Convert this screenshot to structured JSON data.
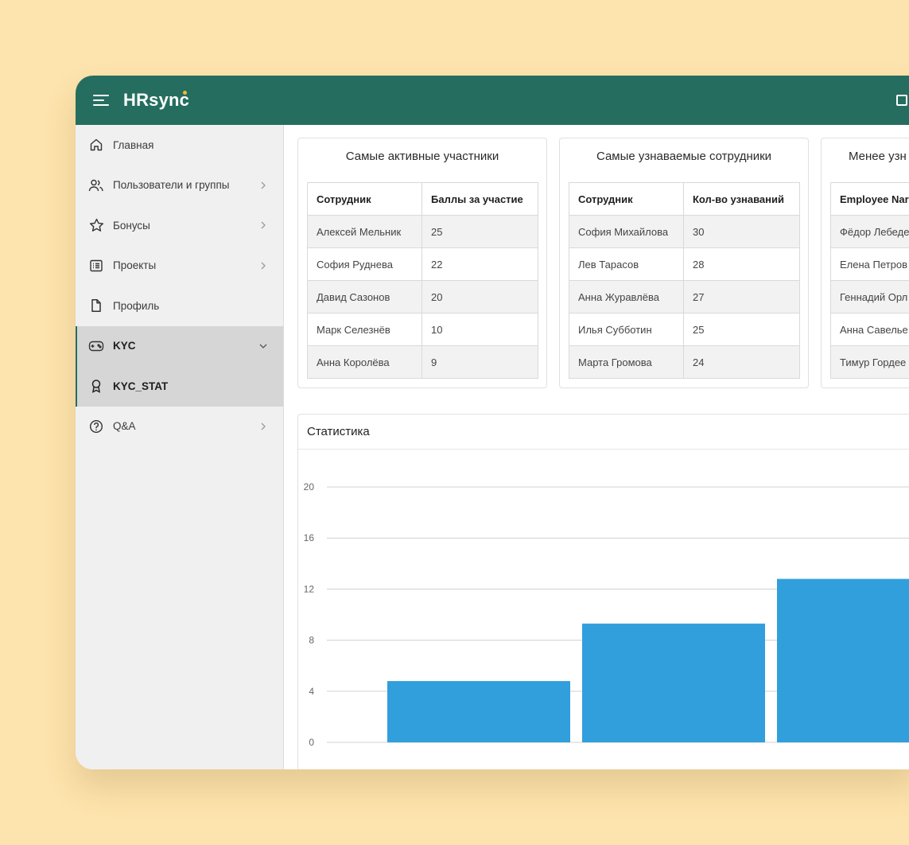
{
  "app": {
    "brand": "HRsync",
    "colors": {
      "topbar": "#256e5f",
      "background": "#fde3ad",
      "bar": "#319fdc",
      "accent_dot": "#f7b731"
    }
  },
  "sidebar": {
    "items": [
      {
        "label": "Главная",
        "icon": "home-icon",
        "chevron": false
      },
      {
        "label": "Пользователи и группы",
        "icon": "users-icon",
        "chevron": true
      },
      {
        "label": "Бонусы",
        "icon": "star-icon",
        "chevron": true
      },
      {
        "label": "Проекты",
        "icon": "list-icon",
        "chevron": true
      },
      {
        "label": "Профиль",
        "icon": "file-icon",
        "chevron": false
      },
      {
        "label": "KYC",
        "icon": "gamepad-icon",
        "chevron": true,
        "expanded": true
      },
      {
        "label": "KYC_STAT",
        "icon": "award-icon",
        "chevron": false,
        "selected": true
      },
      {
        "label": "Q&A",
        "icon": "help-icon",
        "chevron": true
      }
    ]
  },
  "cards": [
    {
      "title": "Самые активные участники",
      "columns": [
        "Сотрудник",
        "Баллы за участие"
      ],
      "rows": [
        [
          "Алексей Мельник",
          "25"
        ],
        [
          "София Руднева",
          "22"
        ],
        [
          "Давид Сазонов",
          "20"
        ],
        [
          "Марк Селезнёв",
          "10"
        ],
        [
          "Анна Королёва",
          "9"
        ]
      ]
    },
    {
      "title": "Самые узнаваемые сотрудники",
      "columns": [
        "Сотрудник",
        "Кол-во узнаваний"
      ],
      "rows": [
        [
          "София Михайлова",
          "30"
        ],
        [
          "Лев Тарасов",
          "28"
        ],
        [
          "Анна  Журавлёва",
          "27"
        ],
        [
          "Илья Субботин",
          "25"
        ],
        [
          "Марта Громова",
          "24"
        ]
      ]
    },
    {
      "title": "Менее узн",
      "columns": [
        "Employee Nar",
        ""
      ],
      "rows": [
        [
          "Фёдор Лебеде",
          ""
        ],
        [
          "Елена Петров",
          ""
        ],
        [
          "Геннадий Орл",
          ""
        ],
        [
          "Анна Савелье",
          ""
        ],
        [
          "Тимур Гордее",
          ""
        ]
      ]
    }
  ],
  "stats": {
    "title": "Статистика"
  },
  "chart_data": {
    "type": "bar",
    "title": "Статистика",
    "categories": [
      "",
      "",
      ""
    ],
    "values": [
      4.8,
      9.3,
      12.8
    ],
    "yticks": [
      0,
      4,
      8,
      12,
      16,
      20
    ],
    "ylim": [
      0,
      23.8
    ],
    "grid": true,
    "color": "#319fdc"
  }
}
